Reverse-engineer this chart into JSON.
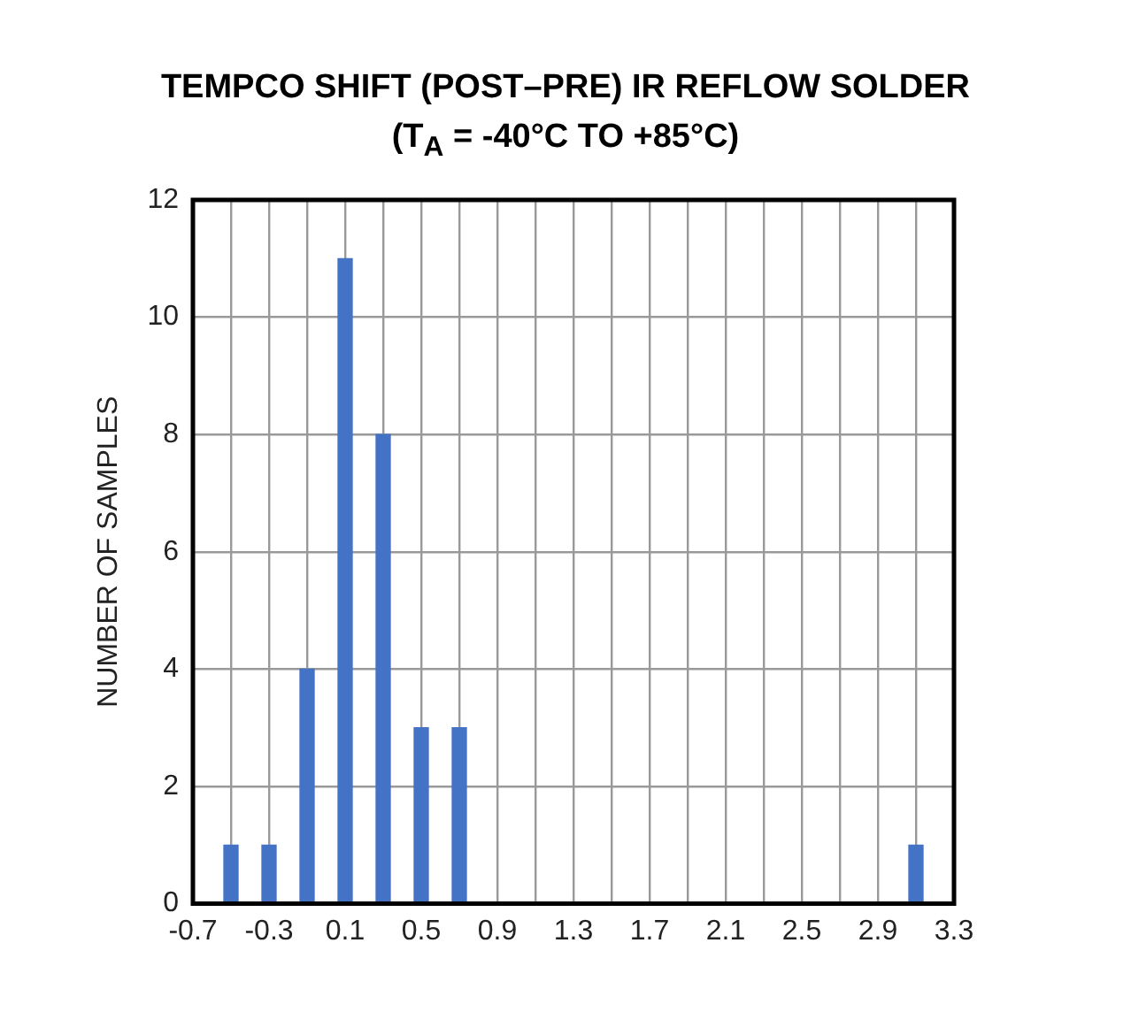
{
  "chart_data": {
    "type": "bar",
    "title": "TEMPCO SHIFT (POST–PRE) IR REFLOW SOLDER",
    "subtitle": "(T$_{A}$ = -40°C TO +85°C)",
    "ylabel": "NUMBER OF SAMPLES",
    "x": [
      -0.5,
      -0.3,
      -0.1,
      0.1,
      0.3,
      0.5,
      0.7,
      3.1
    ],
    "values": [
      1,
      1,
      4,
      11,
      8,
      3,
      3,
      1
    ],
    "color": "#4472c4",
    "xlim": [
      -0.7,
      3.3
    ],
    "xticks": [
      -0.7,
      {
        "value": -0.5,
        "label": null
      },
      -0.3,
      {
        "value": -0.1,
        "label": null
      },
      0.1,
      {
        "value": 0.3,
        "label": null
      },
      0.5,
      {
        "value": 0.7,
        "label": null
      },
      0.9,
      {
        "value": 1.1,
        "label": null
      },
      1.3,
      {
        "value": 1.5,
        "label": null
      },
      1.7,
      {
        "value": 1.9,
        "label": null
      },
      2.1,
      {
        "value": 2.3,
        "label": null
      },
      2.5,
      {
        "value": 2.7,
        "label": null
      },
      2.9,
      {
        "value": 3.1,
        "label": null
      },
      3.3
    ],
    "ylim": [
      0,
      12
    ],
    "yticks": [
      0,
      2,
      4,
      6,
      8,
      10,
      12
    ],
    "grid": true,
    "legend": false
  }
}
